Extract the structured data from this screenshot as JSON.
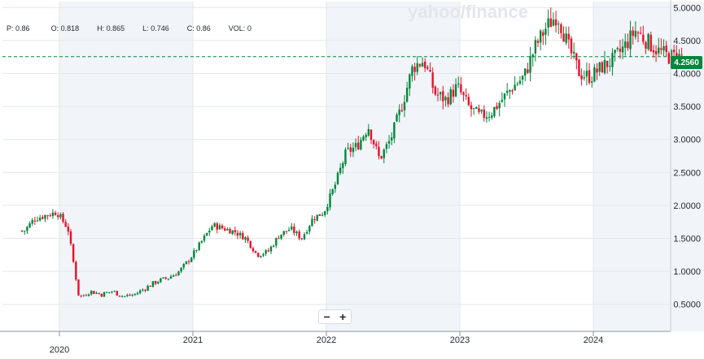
{
  "watermark": "yahoo/finance",
  "ohlc": {
    "p_label": "P:",
    "p_value": "0.86",
    "o_label": "O:",
    "o_value": "0.818",
    "h_label": "H:",
    "h_value": "0.865",
    "l_label": "L:",
    "l_value": "0.746",
    "c_label": "C:",
    "c_value": "0.86",
    "vol_label": "VOL:",
    "vol_value": "0"
  },
  "zoom": {
    "minus": "−",
    "plus": "+"
  },
  "last_price_label": "4.2560",
  "colors": {
    "up": "#00873c",
    "down": "#eb0f29",
    "accent": "#00873c",
    "shade": "#f1f4f8"
  },
  "chart_data": {
    "type": "candlestick",
    "x_labels": [
      "2020",
      "2021",
      "2022",
      "2023",
      "2024"
    ],
    "y_ticks": [
      "5.0000",
      "4.5000",
      "4.0000",
      "3.5000",
      "3.0000",
      "2.5000",
      "2.0000",
      "1.5000",
      "1.0000",
      "0.5000"
    ],
    "ylim": [
      0.09,
      5.09
    ],
    "last_price": 4.256,
    "grid": true,
    "shaded_years": [
      "2020",
      "2022",
      "2024"
    ],
    "series": [
      {
        "date": "2019-09",
        "price": 1.65
      },
      {
        "date": "2019-10",
        "price": 1.6
      },
      {
        "date": "2019-11",
        "price": 1.8
      },
      {
        "date": "2019-12",
        "price": 1.85
      },
      {
        "date": "2020-01",
        "price": 1.9
      },
      {
        "date": "2020-02",
        "price": 1.65
      },
      {
        "date": "2020-03",
        "price": 0.6
      },
      {
        "date": "2020-04",
        "price": 0.7
      },
      {
        "date": "2020-05",
        "price": 0.65
      },
      {
        "date": "2020-06",
        "price": 0.7
      },
      {
        "date": "2020-07",
        "price": 0.62
      },
      {
        "date": "2020-08",
        "price": 0.65
      },
      {
        "date": "2020-09",
        "price": 0.75
      },
      {
        "date": "2020-10",
        "price": 0.85
      },
      {
        "date": "2020-11",
        "price": 0.9
      },
      {
        "date": "2020-12",
        "price": 1.0
      },
      {
        "date": "2021-01",
        "price": 1.2
      },
      {
        "date": "2021-02",
        "price": 1.45
      },
      {
        "date": "2021-03",
        "price": 1.7
      },
      {
        "date": "2021-04",
        "price": 1.65
      },
      {
        "date": "2021-05",
        "price": 1.6
      },
      {
        "date": "2021-06",
        "price": 1.5
      },
      {
        "date": "2021-07",
        "price": 1.25
      },
      {
        "date": "2021-08",
        "price": 1.3
      },
      {
        "date": "2021-09",
        "price": 1.55
      },
      {
        "date": "2021-10",
        "price": 1.65
      },
      {
        "date": "2021-11",
        "price": 1.5
      },
      {
        "date": "2021-12",
        "price": 1.8
      },
      {
        "date": "2022-01",
        "price": 1.9
      },
      {
        "date": "2022-02",
        "price": 2.3
      },
      {
        "date": "2022-03",
        "price": 2.8
      },
      {
        "date": "2022-04",
        "price": 2.9
      },
      {
        "date": "2022-05",
        "price": 3.2
      },
      {
        "date": "2022-06",
        "price": 2.7
      },
      {
        "date": "2022-07",
        "price": 3.0
      },
      {
        "date": "2022-08",
        "price": 3.5
      },
      {
        "date": "2022-09",
        "price": 4.1
      },
      {
        "date": "2022-10",
        "price": 4.2
      },
      {
        "date": "2022-11",
        "price": 3.7
      },
      {
        "date": "2022-12",
        "price": 3.6
      },
      {
        "date": "2023-01",
        "price": 3.8
      },
      {
        "date": "2023-02",
        "price": 3.5
      },
      {
        "date": "2023-03",
        "price": 3.35
      },
      {
        "date": "2023-04",
        "price": 3.4
      },
      {
        "date": "2023-05",
        "price": 3.6
      },
      {
        "date": "2023-06",
        "price": 3.8
      },
      {
        "date": "2023-07",
        "price": 3.95
      },
      {
        "date": "2023-08",
        "price": 4.4
      },
      {
        "date": "2023-09",
        "price": 4.7
      },
      {
        "date": "2023-10",
        "price": 4.9
      },
      {
        "date": "2023-11",
        "price": 4.4
      },
      {
        "date": "2023-12",
        "price": 4.0
      },
      {
        "date": "2024-01",
        "price": 3.95
      },
      {
        "date": "2024-02",
        "price": 4.1
      },
      {
        "date": "2024-03",
        "price": 4.2
      },
      {
        "date": "2024-04",
        "price": 4.4
      },
      {
        "date": "2024-05",
        "price": 4.65
      },
      {
        "date": "2024-06",
        "price": 4.5
      },
      {
        "date": "2024-07",
        "price": 4.35
      },
      {
        "date": "2024-08",
        "price": 4.256
      }
    ]
  }
}
